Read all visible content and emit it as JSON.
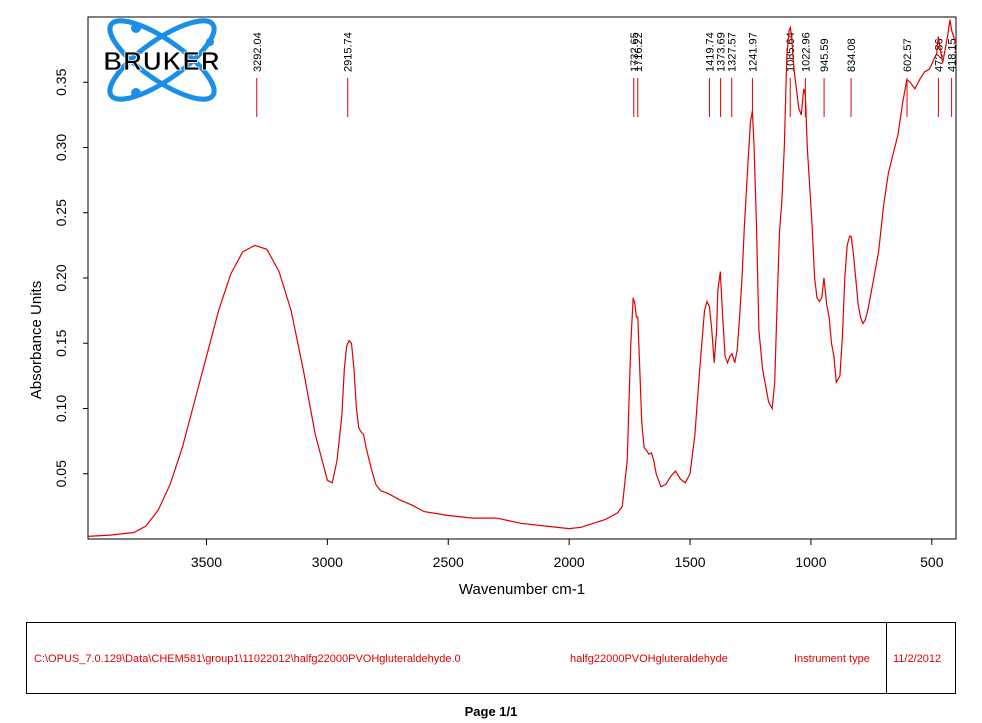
{
  "logo": {
    "text": "BRUKER"
  },
  "colors": {
    "spectrum": "#e00000",
    "axis": "#000000",
    "logo_blue": "#1a8fe8",
    "logo_text": "#000000"
  },
  "chart_data": {
    "type": "line",
    "title": "",
    "xlabel": "Wavenumber cm-1",
    "ylabel": "Absorbance Units",
    "xlim": [
      3990,
      400
    ],
    "ylim": [
      0,
      0.4
    ],
    "x_reversed": true,
    "x_ticks": [
      "3500",
      "3000",
      "2500",
      "2000",
      "1500",
      "1000",
      "500"
    ],
    "y_ticks": [
      "0.05",
      "0.10",
      "0.15",
      "0.20",
      "0.25",
      "0.30",
      "0.35"
    ],
    "grid": false,
    "peak_labels": [
      "3292.04",
      "2915.74",
      "1732.65",
      "1716.22",
      "1419.74",
      "1373.69",
      "1327.57",
      "1241.97",
      "1085.64",
      "1022.96",
      "945.59",
      "834.08",
      "602.57",
      "472.86",
      "418.15"
    ],
    "series": [
      {
        "x": [
          3990,
          3900,
          3800,
          3750,
          3700,
          3650,
          3600,
          3550,
          3500,
          3450,
          3400,
          3350,
          3300,
          3250,
          3200,
          3150,
          3100,
          3050,
          3000,
          2980,
          2960,
          2940,
          2930,
          2920,
          2910,
          2900,
          2890,
          2880,
          2870,
          2860,
          2850,
          2840,
          2820,
          2800,
          2780,
          2750,
          2700,
          2650,
          2600,
          2500,
          2400,
          2300,
          2200,
          2100,
          2000,
          1950,
          1900,
          1850,
          1800,
          1780,
          1760,
          1745,
          1735,
          1728,
          1722,
          1716,
          1710,
          1700,
          1690,
          1680,
          1670,
          1660,
          1650,
          1640,
          1620,
          1600,
          1580,
          1560,
          1540,
          1520,
          1500,
          1480,
          1460,
          1440,
          1430,
          1420,
          1410,
          1400,
          1390,
          1385,
          1375,
          1365,
          1355,
          1345,
          1335,
          1327,
          1315,
          1305,
          1295,
          1285,
          1275,
          1260,
          1250,
          1242,
          1235,
          1225,
          1215,
          1200,
          1185,
          1175,
          1160,
          1150,
          1140,
          1130,
          1120,
          1110,
          1100,
          1090,
          1085,
          1080,
          1070,
          1060,
          1050,
          1040,
          1030,
          1023,
          1015,
          1005,
          995,
          985,
          975,
          965,
          955,
          946,
          935,
          925,
          915,
          905,
          895,
          880,
          870,
          860,
          850,
          840,
          834,
          825,
          815,
          805,
          795,
          785,
          775,
          765,
          750,
          720,
          700,
          680,
          660,
          640,
          620,
          603,
          590,
          570,
          550,
          530,
          510,
          490,
          480,
          473,
          465,
          455,
          445,
          435,
          425,
          418,
          410,
          400
        ],
        "y": [
          0.002,
          0.003,
          0.005,
          0.01,
          0.022,
          0.042,
          0.07,
          0.105,
          0.14,
          0.175,
          0.203,
          0.22,
          0.225,
          0.222,
          0.205,
          0.175,
          0.13,
          0.08,
          0.045,
          0.043,
          0.06,
          0.095,
          0.13,
          0.148,
          0.152,
          0.15,
          0.13,
          0.1,
          0.085,
          0.082,
          0.08,
          0.07,
          0.055,
          0.042,
          0.037,
          0.035,
          0.03,
          0.026,
          0.021,
          0.018,
          0.016,
          0.016,
          0.012,
          0.01,
          0.008,
          0.009,
          0.012,
          0.015,
          0.02,
          0.025,
          0.06,
          0.15,
          0.185,
          0.18,
          0.17,
          0.17,
          0.14,
          0.09,
          0.07,
          0.068,
          0.065,
          0.066,
          0.06,
          0.05,
          0.04,
          0.042,
          0.048,
          0.052,
          0.046,
          0.043,
          0.05,
          0.08,
          0.13,
          0.175,
          0.182,
          0.178,
          0.16,
          0.135,
          0.16,
          0.19,
          0.205,
          0.17,
          0.14,
          0.135,
          0.14,
          0.142,
          0.135,
          0.145,
          0.17,
          0.2,
          0.24,
          0.29,
          0.32,
          0.328,
          0.3,
          0.24,
          0.16,
          0.13,
          0.115,
          0.105,
          0.1,
          0.12,
          0.18,
          0.235,
          0.26,
          0.3,
          0.37,
          0.39,
          0.392,
          0.385,
          0.36,
          0.345,
          0.33,
          0.325,
          0.345,
          0.34,
          0.3,
          0.27,
          0.24,
          0.2,
          0.185,
          0.182,
          0.185,
          0.2,
          0.18,
          0.17,
          0.15,
          0.14,
          0.12,
          0.125,
          0.155,
          0.2,
          0.225,
          0.232,
          0.232,
          0.22,
          0.2,
          0.18,
          0.17,
          0.165,
          0.168,
          0.175,
          0.19,
          0.22,
          0.255,
          0.28,
          0.295,
          0.31,
          0.335,
          0.352,
          0.35,
          0.345,
          0.352,
          0.358,
          0.36,
          0.368,
          0.372,
          0.385,
          0.375,
          0.365,
          0.375,
          0.385,
          0.398,
          0.39,
          0.385,
          0.38
        ]
      }
    ]
  },
  "footer": {
    "path": "C:\\OPUS_7.0.129\\Data\\CHEM581\\group1\\11022012\\halfg22000PVOHgluteraldehyde.0",
    "sample": "halfg22000PVOHgluteraldehyde",
    "instrument": "Instrument type",
    "date": "11/2/2012"
  },
  "page_label": "Page 1/1"
}
